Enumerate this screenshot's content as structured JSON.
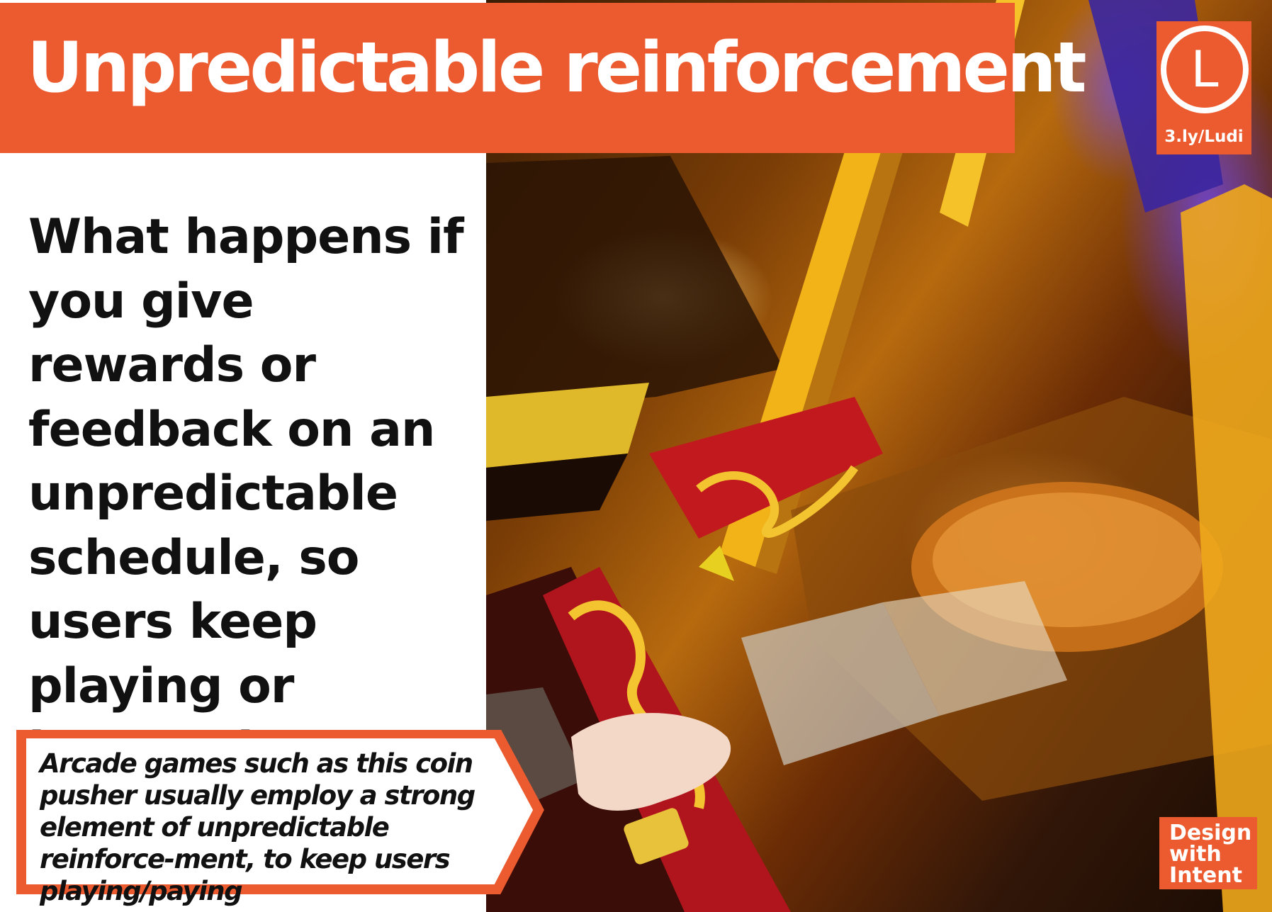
{
  "title": "Unpredictable reinforcement",
  "badge": {
    "letter": "L",
    "link": "3.ly/Ludi"
  },
  "question": "What happens if you give rewards or feedback on an unpredictable schedule, so users keep playing or interacting?",
  "caption": "Arcade games such as this coin pusher usually employ a strong element of unpredictable reinforce-ment, to keep users playing/paying",
  "logo": {
    "line1": "Design",
    "line2": "with",
    "line3": "Intent"
  },
  "colors": {
    "accent": "#ec5b2f",
    "text": "#111111",
    "background": "#ffffff"
  },
  "image": {
    "subject": "coin-pusher-arcade-machine"
  }
}
